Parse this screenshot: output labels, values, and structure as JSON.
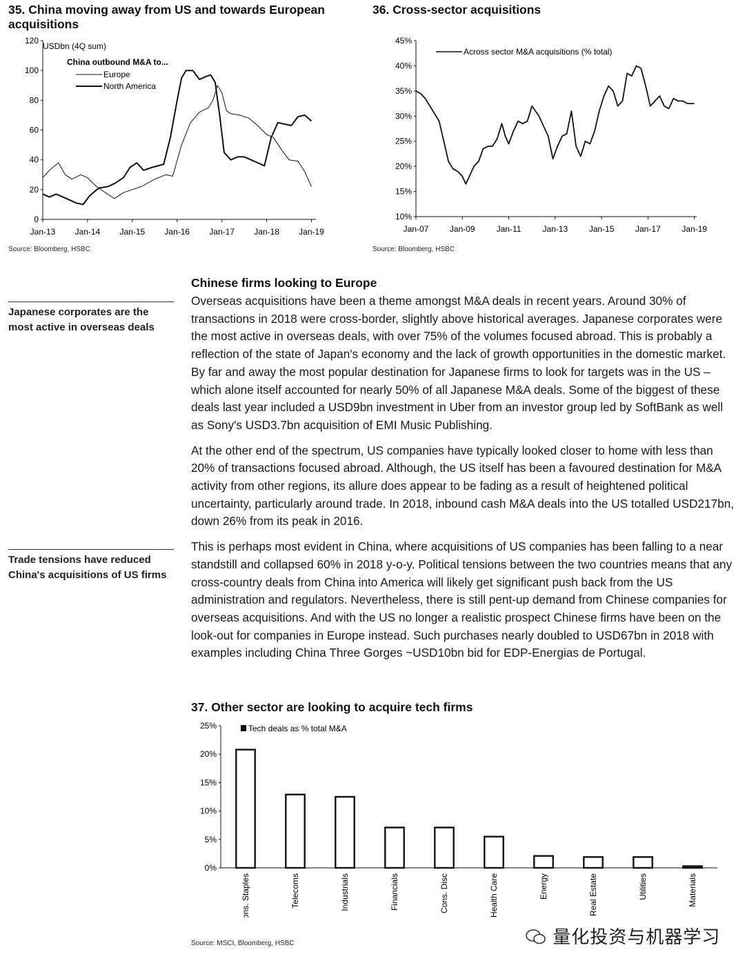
{
  "charts": {
    "c35": {
      "title": "35. China moving away from US and towards European acquisitions",
      "source": "Source: Bloomberg, HSBC",
      "chart_data": {
        "type": "line",
        "ylabel": "USDbn (4Q sum)",
        "legend_title": "China outbound M&A to...",
        "ylim": [
          0,
          120
        ],
        "yticks": [
          "0",
          "20",
          "40",
          "60",
          "80",
          "100",
          "120"
        ],
        "xticks": [
          "Jan-13",
          "Jan-14",
          "Jan-15",
          "Jan-16",
          "Jan-17",
          "Jan-18",
          "Jan-19"
        ],
        "xlim": [
          2013.0,
          2019.1
        ],
        "series": [
          {
            "name": "Europe",
            "x": [
              2013.0,
              2013.15,
              2013.35,
              2013.5,
              2013.65,
              2013.85,
              2014.0,
              2014.2,
              2014.4,
              2014.6,
              2014.8,
              2015.0,
              2015.2,
              2015.5,
              2015.75,
              2015.9,
              2016.1,
              2016.3,
              2016.5,
              2016.7,
              2016.8,
              2016.9,
              2017.0,
              2017.1,
              2017.2,
              2017.4,
              2017.6,
              2017.8,
              2018.0,
              2018.15,
              2018.35,
              2018.5,
              2018.7,
              2018.85,
              2019.0
            ],
            "values": [
              28,
              33,
              38,
              30,
              27,
              30,
              28,
              22,
              18,
              14,
              18,
              20,
              22,
              27,
              30,
              29,
              50,
              65,
              72,
              75,
              80,
              90,
              85,
              73,
              71,
              70,
              68,
              63,
              57,
              55,
              46,
              40,
              39,
              32,
              22
            ]
          },
          {
            "name": "North America",
            "x": [
              2013.0,
              2013.15,
              2013.3,
              2013.45,
              2013.6,
              2013.75,
              2013.9,
              2014.05,
              2014.25,
              2014.45,
              2014.6,
              2014.8,
              2014.95,
              2015.1,
              2015.25,
              2015.45,
              2015.7,
              2015.85,
              2016.0,
              2016.1,
              2016.2,
              2016.35,
              2016.5,
              2016.65,
              2016.75,
              2016.85,
              2016.95,
              2017.05,
              2017.2,
              2017.35,
              2017.5,
              2017.65,
              2017.8,
              2017.95,
              2018.1,
              2018.25,
              2018.4,
              2018.55,
              2018.7,
              2018.85,
              2019.0
            ],
            "values": [
              17,
              15,
              17,
              15,
              13,
              11,
              10,
              16,
              21,
              22,
              24,
              28,
              35,
              38,
              33,
              35,
              37,
              55,
              80,
              95,
              100,
              100,
              94,
              96,
              97,
              92,
              70,
              45,
              40,
              42,
              42,
              40,
              38,
              36,
              55,
              65,
              64,
              63,
              69,
              70,
              66
            ]
          }
        ]
      }
    },
    "c36": {
      "title": "36. Cross-sector acquisitions",
      "source": "Source: Bloomberg, HSBC",
      "chart_data": {
        "type": "line",
        "ylim": [
          10,
          45
        ],
        "yticks": [
          "10%",
          "15%",
          "20%",
          "25%",
          "30%",
          "35%",
          "40%",
          "45%"
        ],
        "xticks": [
          "Jan-07",
          "Jan-09",
          "Jan-11",
          "Jan-13",
          "Jan-15",
          "Jan-17",
          "Jan-19"
        ],
        "xlim": [
          2007.0,
          2019.1
        ],
        "series": [
          {
            "name": "Across sector M&A acquisitions (% total)",
            "x": [
              2007.0,
              2007.2,
              2007.4,
              2007.6,
              2007.8,
              2008.0,
              2008.2,
              2008.4,
              2008.6,
              2008.8,
              2009.0,
              2009.15,
              2009.3,
              2009.5,
              2009.7,
              2009.9,
              2010.1,
              2010.3,
              2010.5,
              2010.7,
              2010.85,
              2011.0,
              2011.2,
              2011.4,
              2011.6,
              2011.8,
              2012.0,
              2012.3,
              2012.5,
              2012.7,
              2012.9,
              2013.1,
              2013.3,
              2013.5,
              2013.7,
              2013.9,
              2014.1,
              2014.3,
              2014.5,
              2014.7,
              2014.9,
              2015.1,
              2015.3,
              2015.5,
              2015.7,
              2015.9,
              2016.1,
              2016.3,
              2016.5,
              2016.7,
              2016.9,
              2017.1,
              2017.3,
              2017.5,
              2017.7,
              2017.9,
              2018.1,
              2018.3,
              2018.5,
              2018.7,
              2018.9,
              2019.0
            ],
            "values": [
              35,
              34.5,
              33.5,
              32,
              30.5,
              29,
              25,
              21,
              19.5,
              19,
              18,
              16.5,
              18,
              20,
              21,
              23.5,
              24,
              24,
              25.5,
              28.5,
              26,
              24.5,
              27,
              29,
              28.5,
              29,
              32,
              30,
              28,
              26,
              21.5,
              24,
              26,
              26.5,
              31,
              24,
              22,
              25,
              24.5,
              27,
              31,
              34,
              36,
              35,
              32,
              33,
              38.5,
              38,
              40,
              39.5,
              36,
              32,
              33,
              34,
              32,
              31.5,
              33.5,
              33,
              33,
              32.5,
              32.5,
              32.5
            ]
          }
        ]
      }
    },
    "c37": {
      "title": "37. Other sector are looking to acquire tech firms",
      "source": "Source: MSCI, Bloomberg, HSBC",
      "chart_data": {
        "type": "bar",
        "ylim": [
          0,
          25
        ],
        "yticks": [
          "0%",
          "5%",
          "10%",
          "15%",
          "20%",
          "25%"
        ],
        "categories": [
          "Cons. Staples",
          "Telecoms",
          "Industrials",
          "Financials",
          "Cons. Disc",
          "Health Care",
          "Energy",
          "Real Estate",
          "Utilities",
          "Materials"
        ],
        "series": [
          {
            "name": "Tech deals as % total M&A",
            "values": [
              20.8,
              12.9,
              12.5,
              7.1,
              7.1,
              5.5,
              2.1,
              1.9,
              1.9,
              0.3
            ]
          }
        ]
      }
    }
  },
  "notes": {
    "japanese": "Japanese corporates are the most active in overseas deals",
    "trade": "Trade tensions have reduced China's acquisitions of US firms"
  },
  "article": {
    "heading": "Chinese firms looking to Europe",
    "paragraphs": [
      "Overseas acquisitions have been a theme amongst M&A deals in recent years. Around 30% of transactions in 2018 were cross-border, slightly above historical averages. Japanese corporates were the most active in overseas deals, with over 75% of the volumes focused abroad. This is probably a reflection of the state of Japan's economy and the lack of growth opportunities in the domestic market. By far and away the most popular destination for Japanese firms to look for targets was in the US – which alone itself accounted for nearly 50% of all Japanese M&A deals. Some of the biggest of these deals last year included a USD9bn investment in Uber from an investor group led by SoftBank as well as Sony's USD3.7bn acquisition of EMI Music Publishing.",
      "At the other end of the spectrum, US companies have typically looked closer to home with less than 20% of transactions focused abroad. Although, the US itself has been a favoured destination for M&A activity from other regions, its allure does appear to be fading as a result of heightened political uncertainty, particularly around trade. In 2018, inbound cash M&A deals into the US totalled USD217bn, down 26% from its peak in 2016.",
      "This is perhaps most evident in China, where acquisitions of US companies has been falling to a near standstill and collapsed 60% in 2018 y-o-y. Political tensions between the two countries means that any cross-country deals from China into America will likely get significant push back from the US administration and regulators. Nevertheless, there is still pent-up demand from Chinese companies for overseas acquisitions. And with the US no longer a realistic prospect Chinese firms have been on the look-out for companies in Europe instead. Such purchases nearly doubled to USD67bn in 2018 with examples including China Three Gorges ~USD10bn bid for EDP-Energias de Portugal."
    ]
  },
  "watermark": "量化投资与机器学习",
  "colors": {
    "ink": "#111111"
  }
}
